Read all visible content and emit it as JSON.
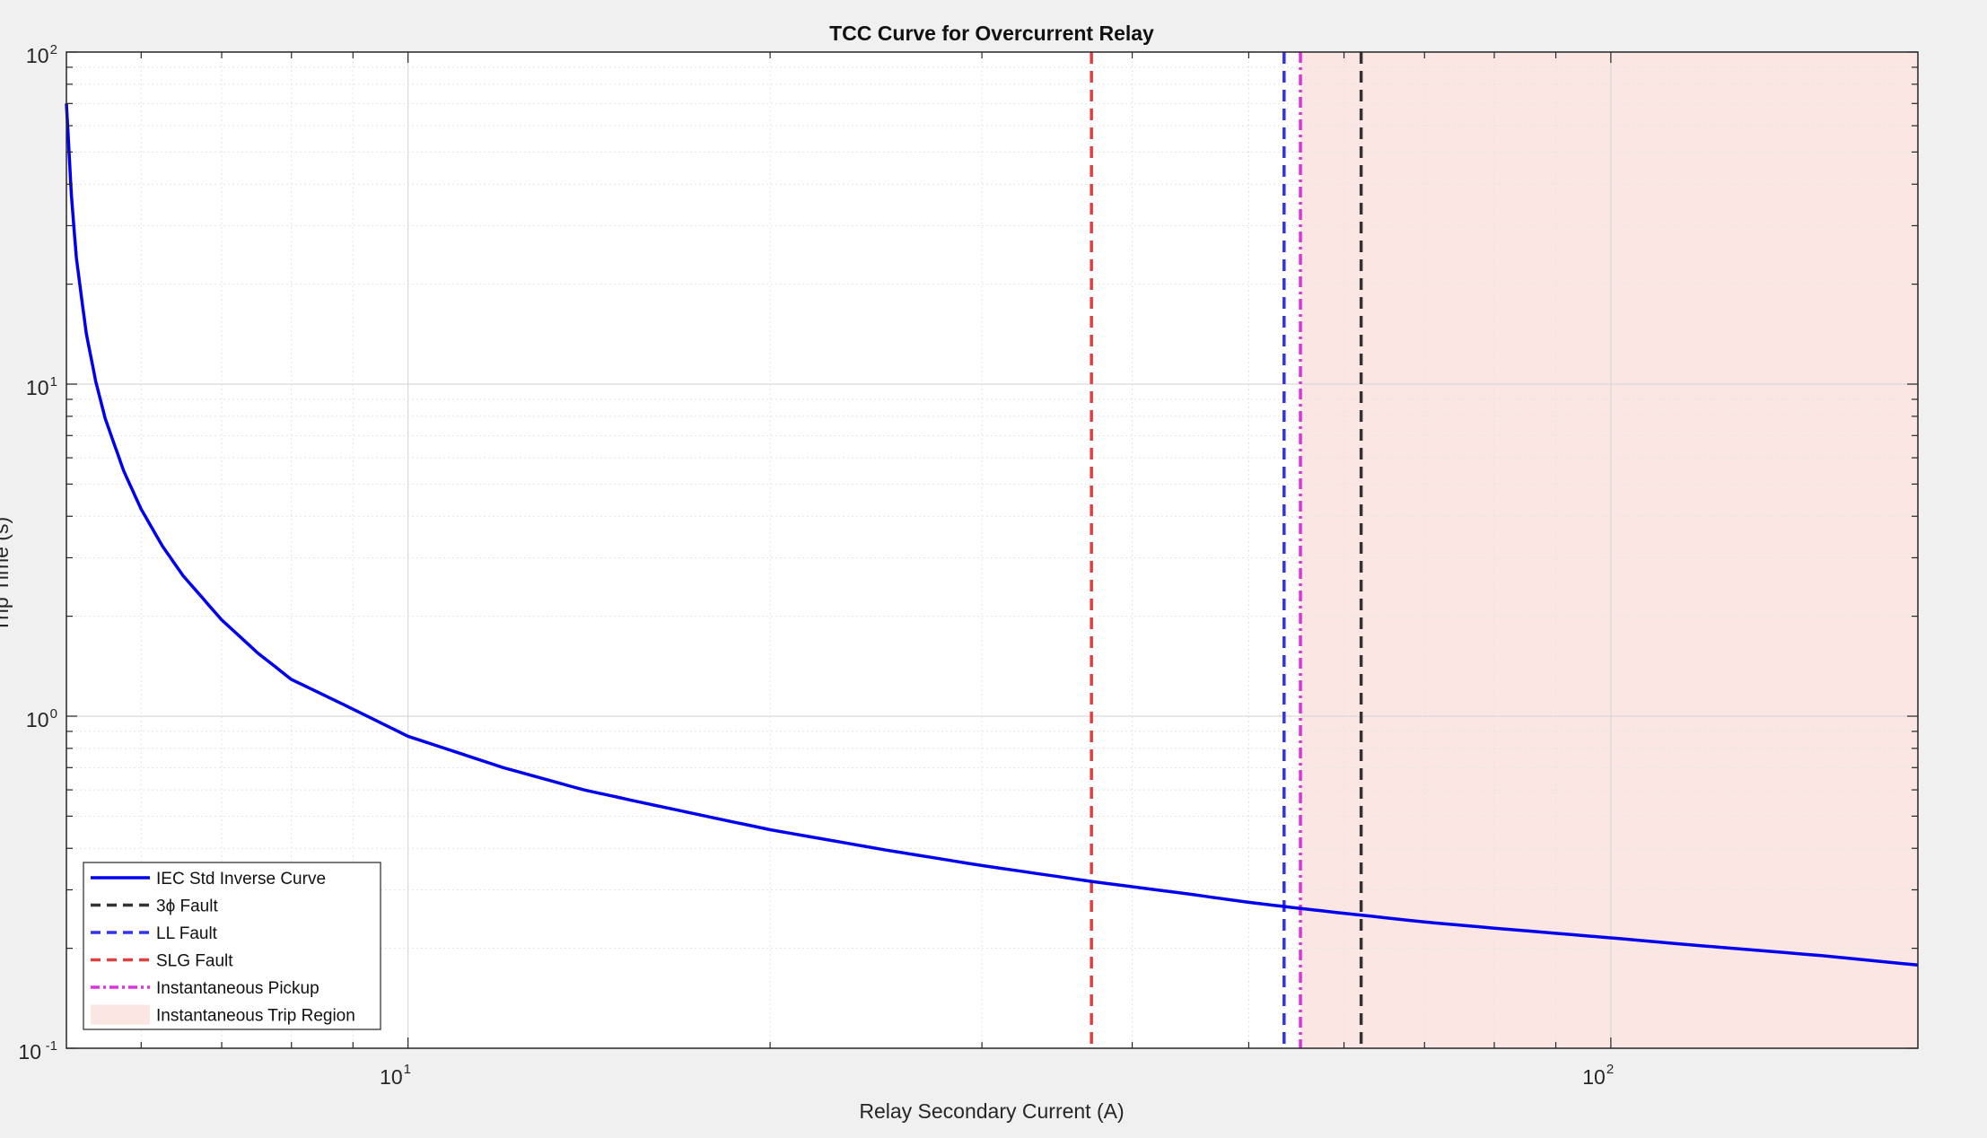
{
  "chart_data": {
    "type": "line",
    "title": "TCC Curve for Overcurrent Relay",
    "xlabel": "Relay Secondary Current (A)",
    "ylabel": "Trip Time (s)",
    "xscale": "log",
    "yscale": "log",
    "xlim": [
      5.2,
      180
    ],
    "ylim": [
      0.1,
      100
    ],
    "grid": true,
    "minor_grid": true,
    "legend_position": "bottom-left",
    "x_ticks": [
      {
        "value": 10,
        "base": "10",
        "exp": "1"
      },
      {
        "value": 100,
        "base": "10",
        "exp": "2"
      }
    ],
    "y_ticks": [
      {
        "value": 0.1,
        "base": "10",
        "exp": "-1"
      },
      {
        "value": 1,
        "base": "10",
        "exp": "0"
      },
      {
        "value": 10,
        "base": "10",
        "exp": "1"
      },
      {
        "value": 100,
        "base": "10",
        "exp": "2"
      }
    ],
    "curve": {
      "name": "IEC Std Inverse Curve",
      "color": "#0000ee",
      "x": [
        5.2,
        5.25,
        5.3,
        5.4,
        5.5,
        5.6,
        5.8,
        6,
        6.25,
        6.5,
        7,
        7.5,
        8,
        9,
        10,
        12,
        14,
        16,
        20,
        25,
        30,
        37,
        45,
        50,
        55,
        60,
        70,
        80,
        100,
        120,
        150,
        180
      ],
      "y": [
        70,
        37,
        24,
        14.3,
        10.2,
        7.9,
        5.5,
        4.2,
        3.25,
        2.65,
        1.95,
        1.55,
        1.29,
        1.05,
        0.87,
        0.7,
        0.6,
        0.54,
        0.455,
        0.395,
        0.355,
        0.318,
        0.29,
        0.275,
        0.264,
        0.255,
        0.24,
        0.23,
        0.215,
        0.203,
        0.19,
        0.178
      ]
    },
    "vertical_lines": [
      {
        "name": "3ϕ Fault",
        "x": 62,
        "color": "#333333",
        "style": "dashed"
      },
      {
        "name": "LL Fault",
        "x": 53.5,
        "color": "#3333ee",
        "style": "dashed"
      },
      {
        "name": "SLG Fault",
        "x": 37,
        "color": "#e04040",
        "style": "dashed"
      },
      {
        "name": "Instantaneous Pickup",
        "x": 55.2,
        "color": "#dd33dd",
        "style": "dashdot"
      }
    ],
    "region": {
      "name": "Instantaneous Trip Region",
      "x_start": 55.2,
      "x_end": 180,
      "color": "#fbe6e4"
    },
    "legend": [
      {
        "label": "IEC Std Inverse Curve",
        "kind": "solid",
        "color": "#0000ee"
      },
      {
        "label": "3ϕ Fault",
        "kind": "dashed",
        "color": "#333333"
      },
      {
        "label": "LL Fault",
        "kind": "dashed",
        "color": "#3333ee"
      },
      {
        "label": "SLG Fault",
        "kind": "dashed",
        "color": "#e04040"
      },
      {
        "label": "Instantaneous Pickup",
        "kind": "dashdot",
        "color": "#dd33dd"
      },
      {
        "label": "Instantaneous Trip Region",
        "kind": "patch",
        "color": "#fbe6e4"
      }
    ]
  }
}
